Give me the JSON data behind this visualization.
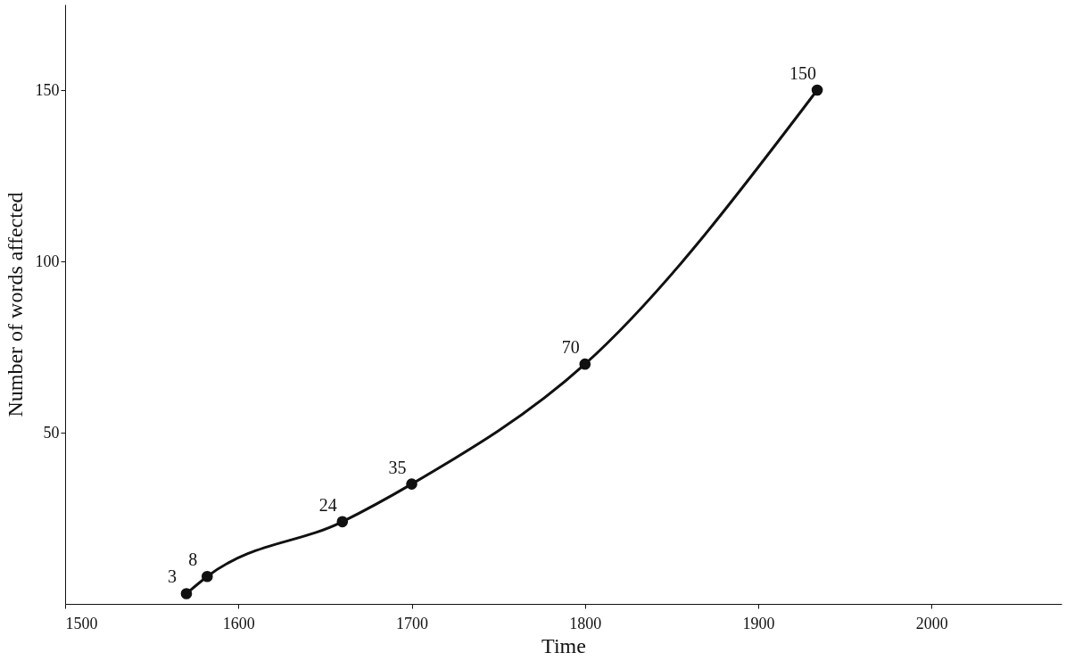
{
  "chart_data": {
    "type": "line",
    "xlabel": "Time",
    "ylabel": "Number of words affected",
    "x": [
      1570,
      1582,
      1660,
      1700,
      1800,
      1934
    ],
    "series": [
      {
        "color": "#111111",
        "values": [
          3,
          8,
          24,
          35,
          70,
          150
        ]
      }
    ],
    "xlim": [
      1500,
      2075
    ],
    "xticks": [
      1500,
      1600,
      1700,
      1800,
      1900,
      2000
    ],
    "ylim": [
      0,
      175
    ],
    "yticks": [
      50,
      100,
      150
    ],
    "data_labels": true,
    "marker": "circle",
    "line_style": "solid",
    "grid": false
  }
}
